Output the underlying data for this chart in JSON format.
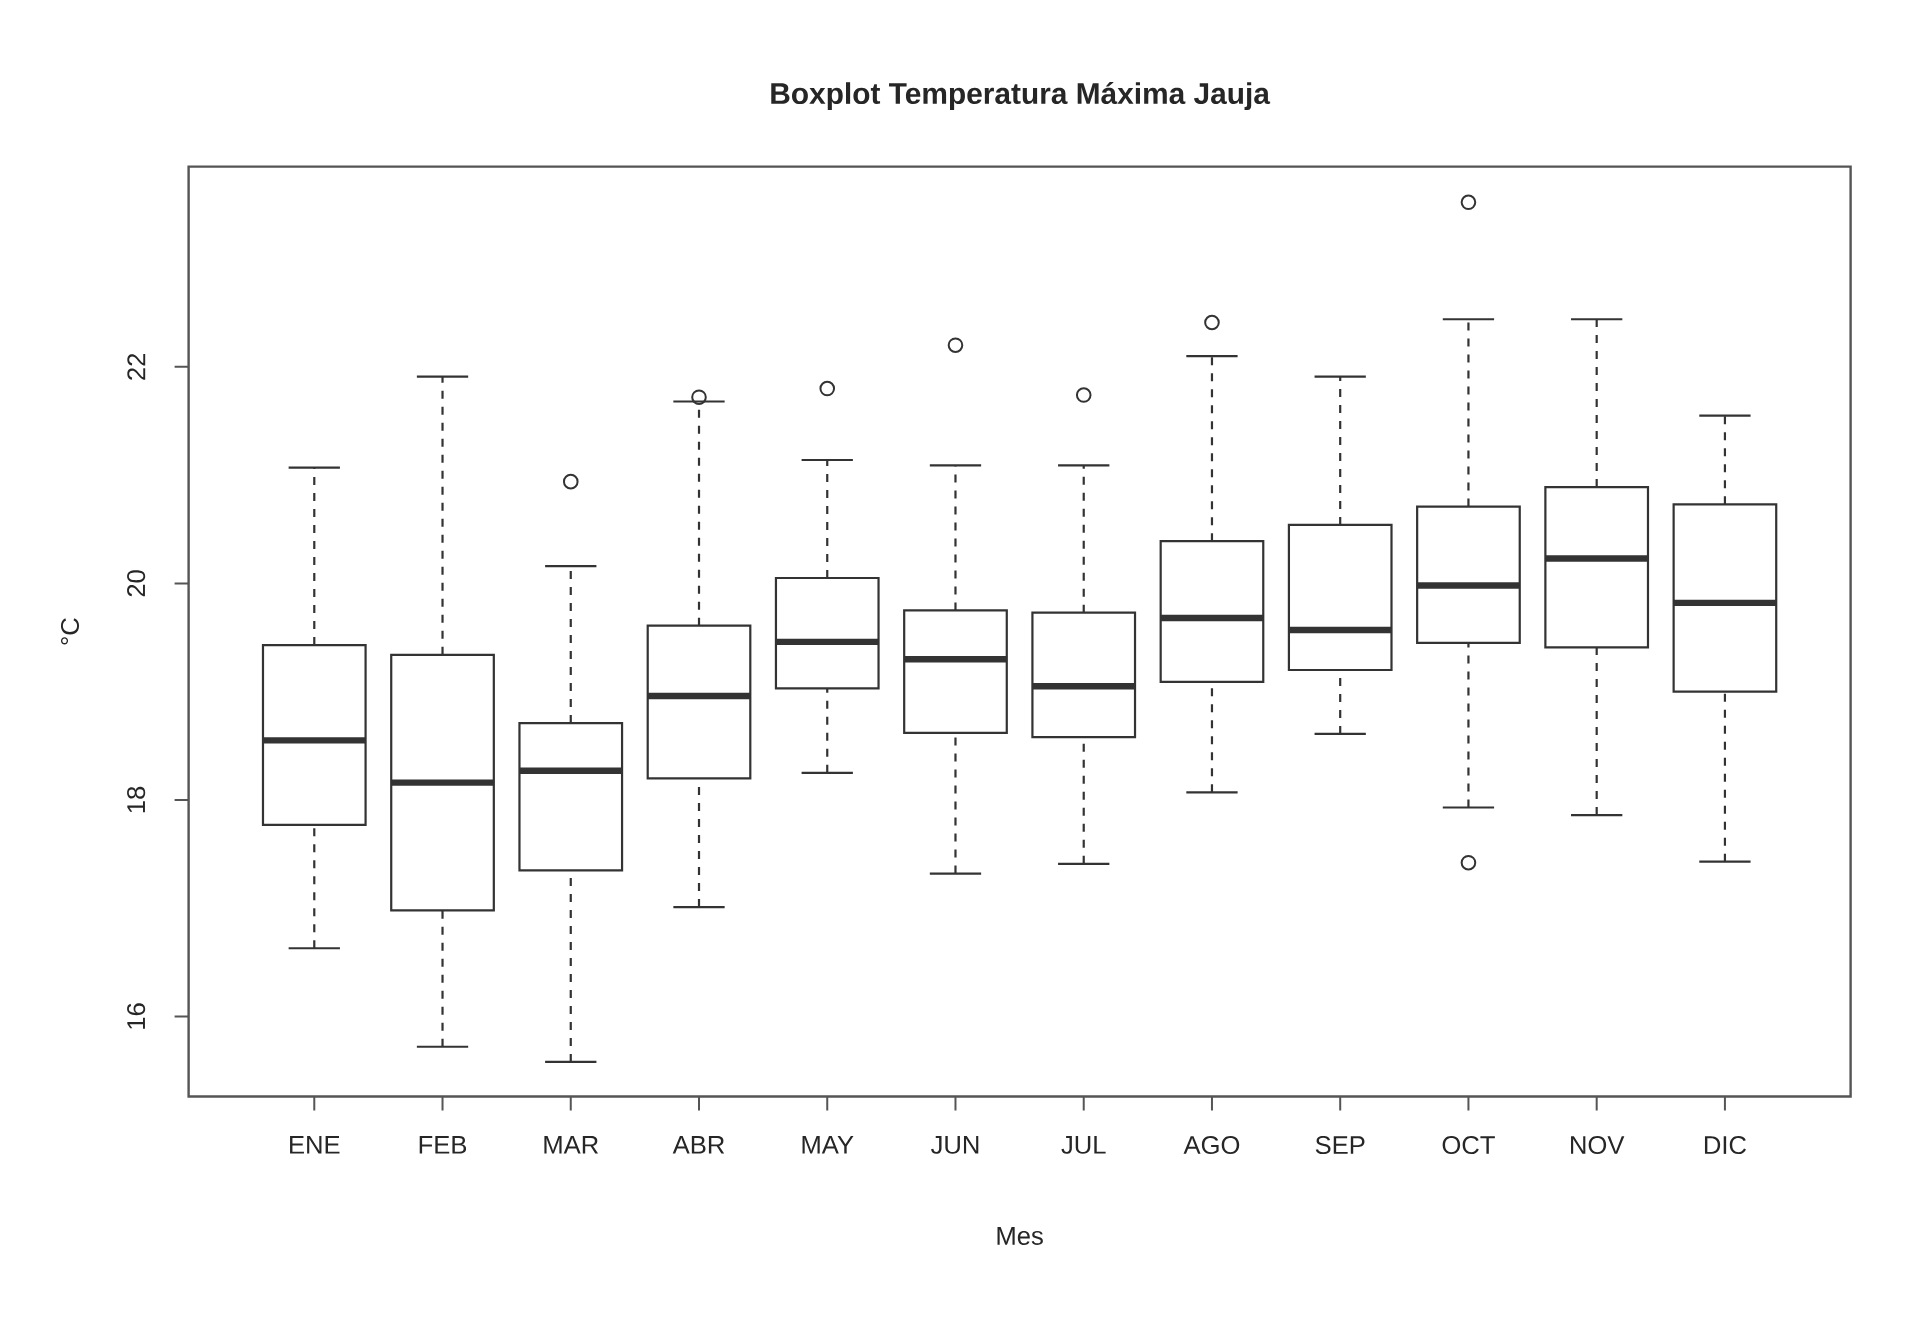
{
  "chart_data": {
    "type": "box",
    "title": "Boxplot Temperatura Máxima Jauja",
    "xlabel": "Mes",
    "ylabel": "°C",
    "categories": [
      "ENE",
      "FEB",
      "MAR",
      "ABR",
      "MAY",
      "JUN",
      "JUL",
      "AGO",
      "SEP",
      "OCT",
      "NOV",
      "DIC"
    ],
    "boxes": [
      {
        "low": 16.63,
        "q1": 17.77,
        "median": 18.55,
        "q3": 19.43,
        "high": 21.07
      },
      {
        "low": 15.72,
        "q1": 16.98,
        "median": 18.16,
        "q3": 19.34,
        "high": 21.91
      },
      {
        "low": 15.58,
        "q1": 17.35,
        "median": 18.27,
        "q3": 18.71,
        "high": 20.16,
        "outliers": [
          20.94
        ]
      },
      {
        "low": 17.01,
        "q1": 18.2,
        "median": 18.96,
        "q3": 19.61,
        "high": 21.68,
        "outliers": [
          21.72
        ]
      },
      {
        "low": 18.25,
        "q1": 19.03,
        "median": 19.46,
        "q3": 20.05,
        "high": 21.14,
        "outliers": [
          21.8
        ]
      },
      {
        "low": 17.32,
        "q1": 18.62,
        "median": 19.3,
        "q3": 19.75,
        "high": 21.09,
        "outliers": [
          22.2
        ]
      },
      {
        "low": 17.41,
        "q1": 18.58,
        "median": 19.05,
        "q3": 19.73,
        "high": 21.09,
        "outliers": [
          21.74
        ]
      },
      {
        "low": 18.07,
        "q1": 19.09,
        "median": 19.68,
        "q3": 20.39,
        "high": 22.1,
        "outliers": [
          22.41
        ]
      },
      {
        "low": 18.61,
        "q1": 19.2,
        "median": 19.57,
        "q3": 20.54,
        "high": 21.91
      },
      {
        "low": 17.93,
        "q1": 19.45,
        "median": 19.98,
        "q3": 20.71,
        "high": 22.44,
        "outliers": [
          23.52,
          17.42
        ]
      },
      {
        "low": 17.86,
        "q1": 19.41,
        "median": 20.23,
        "q3": 20.89,
        "high": 22.44
      },
      {
        "low": 17.43,
        "q1": 19.0,
        "median": 19.82,
        "q3": 20.73,
        "high": 21.55
      }
    ],
    "color": "#333333",
    "marker": "circle",
    "ylim": [
      15.26,
      23.85
    ],
    "yticks": [
      16,
      18,
      20,
      22
    ]
  }
}
